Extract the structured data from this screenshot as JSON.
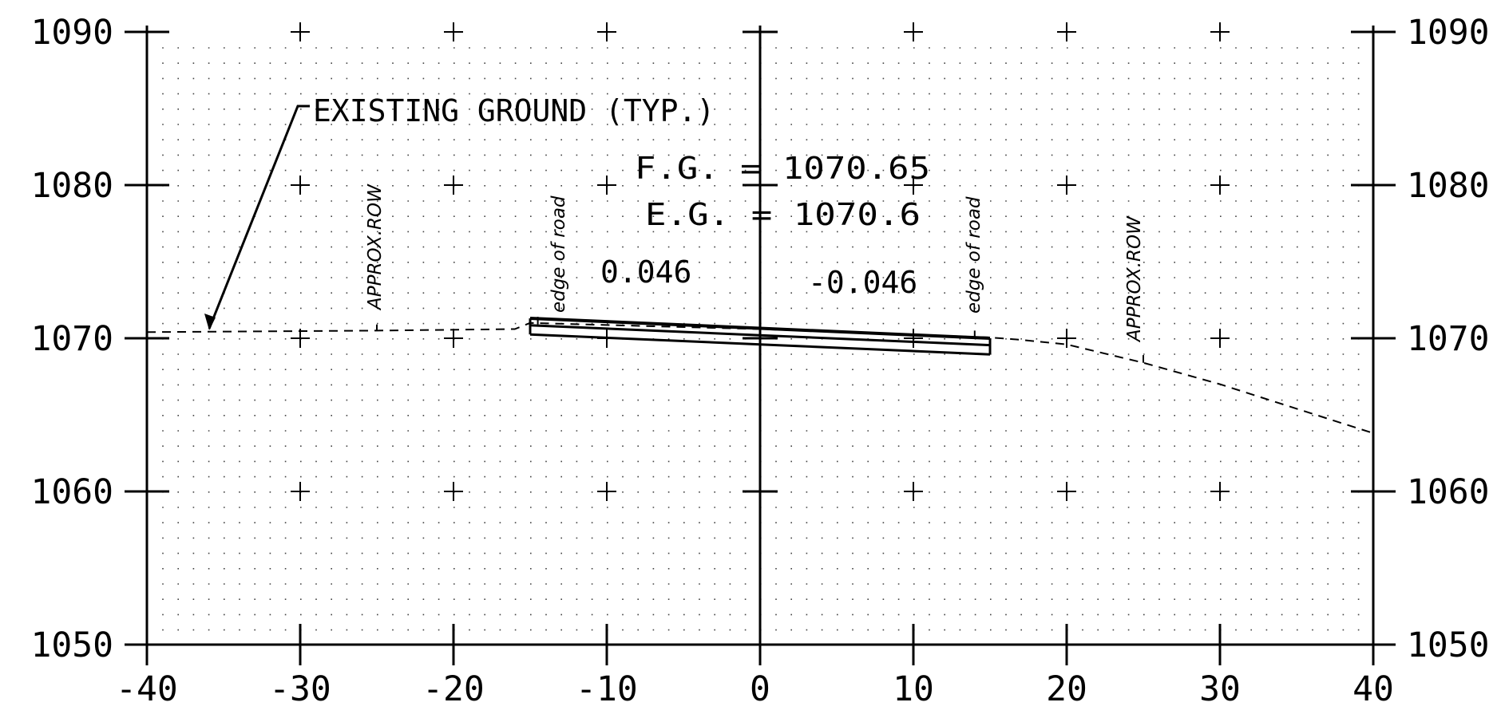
{
  "chart_data": {
    "type": "line",
    "xlim": [
      -40,
      40
    ],
    "ylim": [
      1050,
      1090
    ],
    "x_ticks": [
      "-40",
      "-30",
      "-20",
      "-10",
      "0",
      "10",
      "20",
      "30",
      "40"
    ],
    "y_ticks": [
      "1050",
      "1060",
      "1070",
      "1080",
      "1090"
    ],
    "grid": "dotted",
    "series": [
      {
        "style": "dashed",
        "points": [
          {
            "x": -40,
            "y": 1070.4
          },
          {
            "x": -25,
            "y": 1070.5
          },
          {
            "x": -16,
            "y": 1070.6
          },
          {
            "x": -15,
            "y": 1071.0
          },
          {
            "x": 0,
            "y": 1070.6
          },
          {
            "x": 15,
            "y": 1070.05
          },
          {
            "x": 17,
            "y": 1069.9
          },
          {
            "x": 20,
            "y": 1069.6
          },
          {
            "x": 25,
            "y": 1068.4
          },
          {
            "x": 30,
            "y": 1067.0
          },
          {
            "x": 40,
            "y": 1063.8
          }
        ]
      },
      {
        "style": "solid",
        "points": [
          {
            "x": -15,
            "y": 1071.3
          },
          {
            "x": 0,
            "y": 1070.65
          },
          {
            "x": 15,
            "y": 1070.0
          }
        ]
      }
    ],
    "annotations": {
      "existing_ground": "EXISTING GROUND (TYP.)",
      "fg": "F.G.  =  1070.65",
      "eg": "E.G.  =  1070.6",
      "slope_left": "0.046",
      "slope_right": "-0.046",
      "edge_left": "edge of road",
      "edge_right": "edge of road",
      "row_left": "APPROX.ROW",
      "row_right": "APPROX.ROW"
    }
  }
}
